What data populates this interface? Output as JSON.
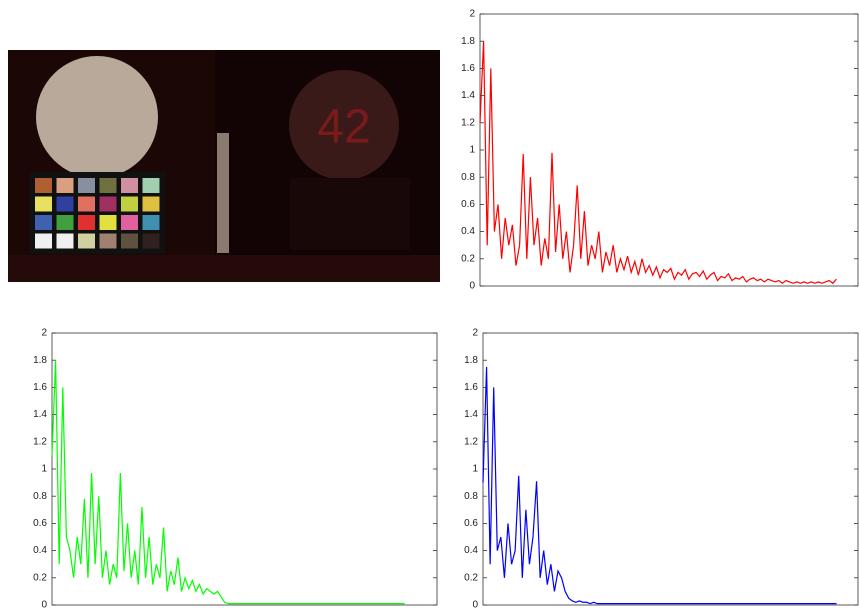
{
  "chart_data": [
    {
      "type": "line",
      "color": "#ff0000",
      "xlim": [
        0,
        105
      ],
      "ylim": [
        0,
        2
      ],
      "yticks": [
        0,
        0.2,
        0.4,
        0.6,
        0.8,
        1,
        1.2,
        1.4,
        1.6,
        1.8,
        2
      ],
      "values": [
        1.2,
        1.8,
        0.3,
        1.6,
        0.4,
        0.6,
        0.2,
        0.5,
        0.3,
        0.45,
        0.15,
        0.3,
        0.97,
        0.2,
        0.8,
        0.3,
        0.5,
        0.15,
        0.35,
        0.2,
        0.98,
        0.25,
        0.6,
        0.2,
        0.4,
        0.1,
        0.3,
        0.74,
        0.2,
        0.55,
        0.15,
        0.3,
        0.2,
        0.4,
        0.1,
        0.25,
        0.15,
        0.3,
        0.1,
        0.2,
        0.12,
        0.22,
        0.1,
        0.18,
        0.08,
        0.2,
        0.1,
        0.15,
        0.08,
        0.14,
        0.06,
        0.12,
        0.1,
        0.13,
        0.05,
        0.1,
        0.08,
        0.12,
        0.05,
        0.09,
        0.1,
        0.07,
        0.11,
        0.05,
        0.08,
        0.1,
        0.04,
        0.07,
        0.06,
        0.09,
        0.04,
        0.06,
        0.05,
        0.07,
        0.03,
        0.05,
        0.06,
        0.04,
        0.05,
        0.03,
        0.05,
        0.04,
        0.03,
        0.04,
        0.02,
        0.04,
        0.03,
        0.02,
        0.03,
        0.02,
        0.03,
        0.02,
        0.03,
        0.02,
        0.03,
        0.02,
        0.03,
        0.04,
        0.02,
        0.05
      ]
    },
    {
      "type": "line",
      "color": "#00ff00",
      "xlim": [
        0,
        107
      ],
      "ylim": [
        0,
        2
      ],
      "yticks": [
        0,
        0.2,
        0.4,
        0.6,
        0.8,
        1,
        1.2,
        1.4,
        1.6,
        1.8,
        2
      ],
      "values": [
        1.1,
        1.8,
        0.3,
        1.6,
        0.5,
        0.4,
        0.2,
        0.5,
        0.3,
        0.78,
        0.2,
        0.97,
        0.3,
        0.8,
        0.2,
        0.4,
        0.15,
        0.3,
        0.2,
        0.97,
        0.25,
        0.6,
        0.2,
        0.4,
        0.15,
        0.72,
        0.2,
        0.5,
        0.15,
        0.3,
        0.2,
        0.57,
        0.1,
        0.25,
        0.15,
        0.35,
        0.1,
        0.2,
        0.12,
        0.18,
        0.1,
        0.15,
        0.08,
        0.12,
        0.1,
        0.08,
        0.1,
        0.06,
        0.02,
        0.01,
        0.01,
        0.01,
        0.01,
        0.01,
        0.01,
        0.01,
        0.01,
        0.01,
        0.01,
        0.01,
        0.01,
        0.01,
        0.01,
        0.01,
        0.01,
        0.01,
        0.01,
        0.01,
        0.01,
        0.01,
        0.01,
        0.01,
        0.01,
        0.01,
        0.01,
        0.01,
        0.01,
        0.01,
        0.01,
        0.01,
        0.01,
        0.01,
        0.01,
        0.01,
        0.01,
        0.01,
        0.01,
        0.01,
        0.01,
        0.01,
        0.01,
        0.01,
        0.01,
        0.01,
        0.01,
        0.01,
        0.01,
        0.01,
        0.01
      ]
    },
    {
      "type": "line",
      "color": "#0000ff",
      "xlim": [
        0,
        105
      ],
      "ylim": [
        0,
        2
      ],
      "yticks": [
        0,
        0.2,
        0.4,
        0.6,
        0.8,
        1,
        1.2,
        1.4,
        1.6,
        1.8,
        2
      ],
      "values": [
        0.9,
        1.75,
        0.3,
        1.6,
        0.4,
        0.5,
        0.2,
        0.6,
        0.3,
        0.4,
        0.95,
        0.2,
        0.7,
        0.3,
        0.5,
        0.91,
        0.2,
        0.4,
        0.15,
        0.3,
        0.1,
        0.25,
        0.2,
        0.1,
        0.05,
        0.03,
        0.02,
        0.03,
        0.02,
        0.02,
        0.01,
        0.02,
        0.01,
        0.01,
        0.01,
        0.01,
        0.01,
        0.01,
        0.01,
        0.01,
        0.01,
        0.01,
        0.01,
        0.01,
        0.01,
        0.01,
        0.01,
        0.01,
        0.01,
        0.01,
        0.01,
        0.01,
        0.01,
        0.01,
        0.01,
        0.01,
        0.01,
        0.01,
        0.01,
        0.01,
        0.01,
        0.01,
        0.01,
        0.01,
        0.01,
        0.01,
        0.01,
        0.01,
        0.01,
        0.01,
        0.01,
        0.01,
        0.01,
        0.01,
        0.01,
        0.01,
        0.01,
        0.01,
        0.01,
        0.01,
        0.01,
        0.01,
        0.01,
        0.01,
        0.01,
        0.01,
        0.01,
        0.01,
        0.01,
        0.01,
        0.01,
        0.01,
        0.01,
        0.01,
        0.01,
        0.01,
        0.01,
        0.01,
        0.01,
        0.01
      ]
    }
  ]
}
